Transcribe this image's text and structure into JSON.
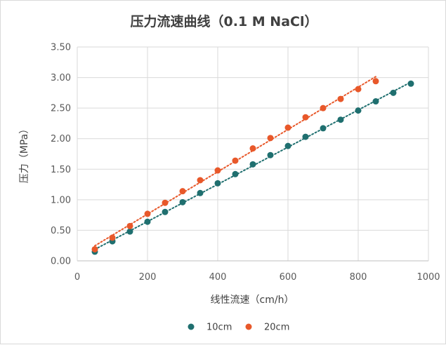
{
  "chart_data": {
    "type": "scatter",
    "title": "压力流速曲线（0.1 M NaCl）",
    "xlabel": "线性流速（cm/h）",
    "ylabel": "压力（MPa）",
    "xlim": [
      0,
      1000
    ],
    "ylim": [
      0,
      3.5
    ],
    "xticks": [
      0,
      200,
      400,
      600,
      800,
      1000
    ],
    "yticks": [
      0,
      0.5,
      1.0,
      1.5,
      2.0,
      2.5,
      3.0,
      3.5
    ],
    "xtick_labels": [
      "0",
      "200",
      "400",
      "600",
      "800",
      "1000"
    ],
    "ytick_labels": [
      "0.00",
      "0.50",
      "1.00",
      "1.50",
      "2.00",
      "2.50",
      "3.00",
      "3.50"
    ],
    "grid": true,
    "legend_position": "bottom",
    "trendline": "linear, dotted",
    "series": [
      {
        "name": "10cm",
        "color": "#1f6f6f",
        "x": [
          50,
          100,
          150,
          200,
          250,
          300,
          350,
          400,
          450,
          500,
          550,
          600,
          650,
          700,
          750,
          800,
          850,
          900,
          950
        ],
        "y": [
          0.15,
          0.32,
          0.48,
          0.64,
          0.8,
          0.96,
          1.11,
          1.27,
          1.42,
          1.58,
          1.73,
          1.88,
          2.03,
          2.17,
          2.31,
          2.46,
          2.61,
          2.75,
          2.9
        ]
      },
      {
        "name": "20cm",
        "color": "#e8582a",
        "x": [
          50,
          100,
          150,
          200,
          250,
          300,
          350,
          400,
          450,
          500,
          550,
          600,
          650,
          700,
          750,
          800,
          850
        ],
        "y": [
          0.19,
          0.38,
          0.57,
          0.77,
          0.95,
          1.14,
          1.32,
          1.48,
          1.64,
          1.84,
          2.01,
          2.18,
          2.35,
          2.5,
          2.65,
          2.81,
          2.94
        ]
      }
    ]
  }
}
